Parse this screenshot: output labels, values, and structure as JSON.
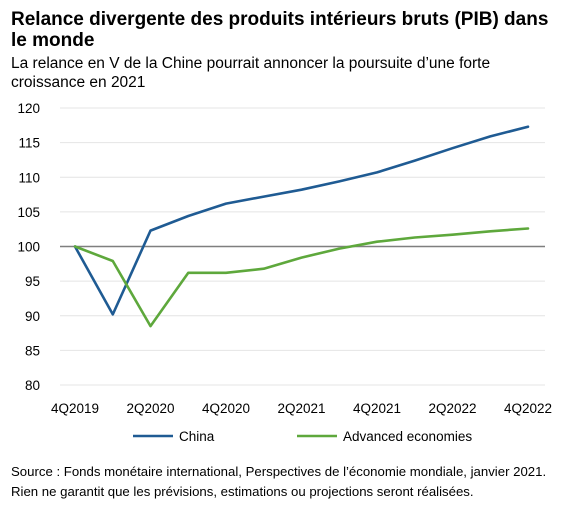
{
  "title": "Relance divergente des produits intérieurs bruts (PIB) dans le monde",
  "subtitle": "La relance en V de la Chine pourrait annoncer la poursuite d’une forte croissance en 2021",
  "source": "Source : Fonds monétaire international, Perspectives de l’économie mondiale, janvier 2021. Rien ne garantit que les prévisions, estimations ou projections seront réalisées.",
  "chart_data": {
    "type": "line",
    "x": [
      "4Q2019",
      "1Q2020",
      "2Q2020",
      "3Q2020",
      "4Q2020",
      "1Q2021",
      "2Q2021",
      "3Q2021",
      "4Q2021",
      "1Q2022",
      "2Q2022",
      "3Q2022",
      "4Q2022"
    ],
    "x_tick_labels": [
      "4Q2019",
      "2Q2020",
      "4Q2020",
      "2Q2021",
      "4Q2021",
      "2Q2022",
      "4Q2022"
    ],
    "ylim": [
      80,
      120
    ],
    "y_ticks": [
      80,
      85,
      90,
      95,
      100,
      105,
      110,
      115,
      120
    ],
    "reference_line": 100,
    "grid": true,
    "legend_position": "bottom",
    "series": [
      {
        "name": "China",
        "color": "#1f5b93",
        "values": [
          100,
          90.2,
          102.3,
          104.4,
          106.2,
          107.2,
          108.2,
          109.4,
          110.7,
          112.4,
          114.2,
          115.9,
          117.3
        ]
      },
      {
        "name": "Advanced economies",
        "color": "#5ea83c",
        "values": [
          100,
          97.9,
          88.5,
          96.2,
          96.2,
          96.8,
          98.4,
          99.7,
          100.7,
          101.3,
          101.7,
          102.2,
          102.6
        ]
      }
    ]
  }
}
